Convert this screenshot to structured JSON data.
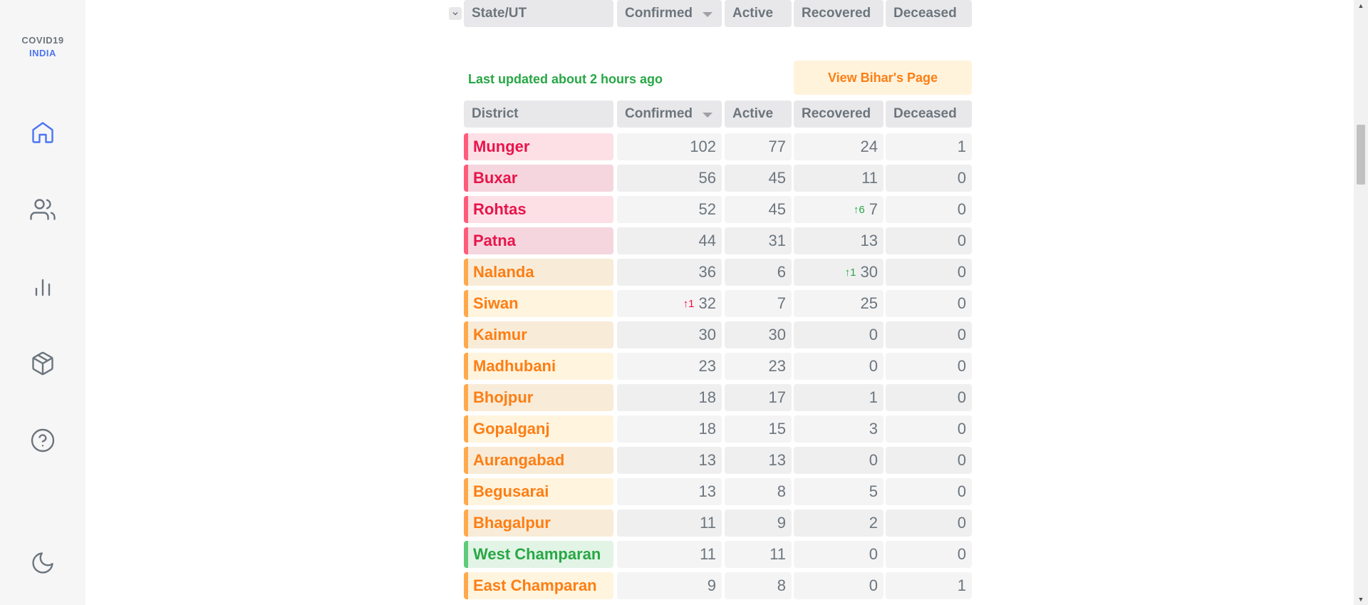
{
  "app": {
    "logo_line1": "COVID19",
    "logo_line2": "INDIA"
  },
  "sidebar": {
    "items": [
      {
        "name": "home",
        "icon": "home-icon"
      },
      {
        "name": "demographics",
        "icon": "users-icon"
      },
      {
        "name": "deep-dive",
        "icon": "bar-chart-icon"
      },
      {
        "name": "essentials",
        "icon": "package-icon"
      },
      {
        "name": "faq",
        "icon": "help-circle-icon"
      },
      {
        "name": "theme",
        "icon": "moon-icon"
      }
    ]
  },
  "state_header": {
    "name": "State/UT",
    "confirmed": "Confirmed",
    "active": "Active",
    "recovered": "Recovered",
    "deceased": "Deceased"
  },
  "last_updated": "Last updated about 2 hours ago",
  "view_page_label": "View Bihar's Page",
  "district_header": {
    "name": "District",
    "confirmed": "Confirmed",
    "active": "Active",
    "recovered": "Recovered",
    "deceased": "Deceased"
  },
  "districts": [
    {
      "name": "Munger",
      "confirmed": "102",
      "active": "77",
      "recovered": "24",
      "deceased": "1",
      "color": "#ff073a"
    },
    {
      "name": "Buxar",
      "confirmed": "56",
      "active": "45",
      "recovered": "11",
      "deceased": "0",
      "color": "#ff073a"
    },
    {
      "name": "Rohtas",
      "confirmed": "52",
      "active": "45",
      "recovered": "7",
      "recovered_delta": "↑6",
      "deceased": "0",
      "color": "#ff073a"
    },
    {
      "name": "Patna",
      "confirmed": "44",
      "active": "31",
      "recovered": "13",
      "deceased": "0",
      "color": "#ff073a"
    },
    {
      "name": "Nalanda",
      "confirmed": "36",
      "active": "6",
      "recovered": "30",
      "recovered_delta": "↑1",
      "deceased": "0",
      "color": "#fd7e14"
    },
    {
      "name": "Siwan",
      "confirmed": "32",
      "confirmed_delta": "↑1",
      "active": "7",
      "recovered": "25",
      "deceased": "0",
      "color": "#fd7e14"
    },
    {
      "name": "Kaimur",
      "confirmed": "30",
      "active": "30",
      "recovered": "0",
      "deceased": "0",
      "color": "#fd7e14"
    },
    {
      "name": "Madhubani",
      "confirmed": "23",
      "active": "23",
      "recovered": "0",
      "deceased": "0",
      "color": "#fd7e14"
    },
    {
      "name": "Bhojpur",
      "confirmed": "18",
      "active": "17",
      "recovered": "1",
      "deceased": "0",
      "color": "#fd7e14"
    },
    {
      "name": "Gopalganj",
      "confirmed": "18",
      "active": "15",
      "recovered": "3",
      "deceased": "0",
      "color": "#fd7e14"
    },
    {
      "name": "Aurangabad",
      "confirmed": "13",
      "active": "13",
      "recovered": "0",
      "deceased": "0",
      "color": "#fd7e14"
    },
    {
      "name": "Begusarai",
      "confirmed": "13",
      "active": "8",
      "recovered": "5",
      "deceased": "0",
      "color": "#fd7e14"
    },
    {
      "name": "Bhagalpur",
      "confirmed": "11",
      "active": "9",
      "recovered": "2",
      "deceased": "0",
      "color": "#fd7e14"
    },
    {
      "name": "West Champaran",
      "confirmed": "11",
      "active": "11",
      "recovered": "0",
      "deceased": "0",
      "color": "#28a745"
    },
    {
      "name": "East Champaran",
      "confirmed": "9",
      "active": "8",
      "recovered": "0",
      "deceased": "1",
      "color": "#fd7e14"
    }
  ]
}
